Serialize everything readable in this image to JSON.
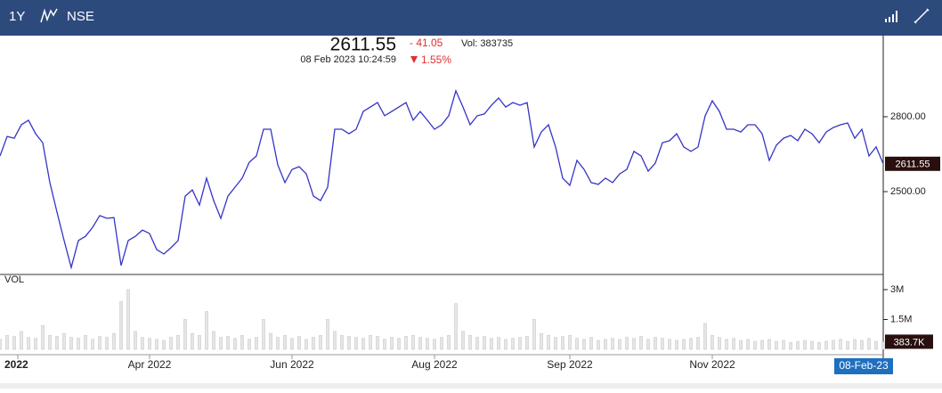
{
  "header": {
    "range": "1Y",
    "exchange": "NSE"
  },
  "quote": {
    "price": 2611.55,
    "change": "- 41.05",
    "volume_label": "Vol:",
    "volume": 383735,
    "time": "08 Feb 2023 10:24:59",
    "change_pct": "1.55%"
  },
  "chart_data": {
    "type": "line",
    "xlim": [
      0,
      124
    ],
    "xticks": [
      {
        "value": 2.5,
        "label": "2022"
      },
      {
        "value": 21,
        "label": "Apr 2022"
      },
      {
        "value": 41,
        "label": "Jun 2022"
      },
      {
        "value": 61,
        "label": "Aug 2022"
      },
      {
        "value": 80,
        "label": "Sep 2022"
      },
      {
        "value": 100,
        "label": "Nov 2022"
      }
    ],
    "crosshair_label": "08-Feb-23",
    "ylim": [
      2168,
      3125
    ],
    "yticks": [
      {
        "value": 2800,
        "label": "2800.00"
      },
      {
        "value": 2500,
        "label": "2500.00"
      }
    ],
    "series": [
      {
        "color": "#3434c8",
        "values": [
          2643,
          2721,
          2714,
          2768,
          2786,
          2732,
          2696,
          2536,
          2418,
          2304,
          2196,
          2304,
          2321,
          2357,
          2404,
          2393,
          2396,
          2204,
          2304,
          2321,
          2346,
          2332,
          2268,
          2250,
          2275,
          2304,
          2482,
          2507,
          2446,
          2554,
          2464,
          2393,
          2482,
          2518,
          2554,
          2618,
          2643,
          2750,
          2750,
          2607,
          2536,
          2589,
          2600,
          2571,
          2482,
          2464,
          2518,
          2750,
          2750,
          2732,
          2750,
          2821,
          2839,
          2857,
          2804,
          2821,
          2839,
          2857,
          2786,
          2821,
          2786,
          2750,
          2768,
          2804,
          2904,
          2839,
          2768,
          2804,
          2811,
          2846,
          2875,
          2839,
          2857,
          2846,
          2857,
          2679,
          2739,
          2768,
          2679,
          2554,
          2525,
          2625,
          2589,
          2536,
          2529,
          2554,
          2536,
          2571,
          2589,
          2661,
          2643,
          2582,
          2614,
          2696,
          2704,
          2732,
          2679,
          2661,
          2679,
          2804,
          2864,
          2821,
          2750,
          2750,
          2739,
          2768,
          2768,
          2732,
          2625,
          2686,
          2714,
          2725,
          2704,
          2750,
          2732,
          2696,
          2739,
          2757,
          2768,
          2775,
          2714,
          2750,
          2643,
          2679,
          2611.55
        ]
      }
    ],
    "volume": {
      "label": "VOL",
      "color": "#e6e6e6",
      "ylim": [
        0,
        3760000
      ],
      "yticks": [
        {
          "value": 3000000,
          "label": "3M"
        },
        {
          "value": 1500000,
          "label": "1.5M"
        }
      ],
      "last_label": "383.7K",
      "values": [
        500000,
        700000,
        650000,
        900000,
        600000,
        550000,
        1200000,
        700000,
        650000,
        800000,
        600000,
        550000,
        700000,
        500000,
        650000,
        600000,
        800000,
        2400000,
        3000000,
        900000,
        600000,
        550000,
        500000,
        450000,
        600000,
        700000,
        1500000,
        800000,
        700000,
        1900000,
        900000,
        600000,
        650000,
        550000,
        700000,
        500000,
        600000,
        1500000,
        800000,
        600000,
        700000,
        550000,
        650000,
        500000,
        600000,
        700000,
        1500000,
        900000,
        700000,
        650000,
        600000,
        550000,
        700000,
        650000,
        500000,
        600000,
        550000,
        650000,
        700000,
        600000,
        550000,
        500000,
        600000,
        700000,
        2300000,
        900000,
        700000,
        600000,
        650000,
        550000,
        600000,
        500000,
        550000,
        600000,
        650000,
        1500000,
        800000,
        700000,
        600000,
        650000,
        700000,
        550000,
        500000,
        600000,
        450000,
        500000,
        550000,
        500000,
        600000,
        550000,
        650000,
        500000,
        600000,
        550000,
        500000,
        450000,
        500000,
        550000,
        600000,
        1300000,
        700000,
        600000,
        500000,
        550000,
        450000,
        500000,
        400000,
        450000,
        500000,
        400000,
        450000,
        350000,
        400000,
        450000,
        400000,
        350000,
        400000,
        450000,
        500000,
        400000,
        500000,
        450000,
        550000,
        400000,
        383735
      ]
    }
  }
}
